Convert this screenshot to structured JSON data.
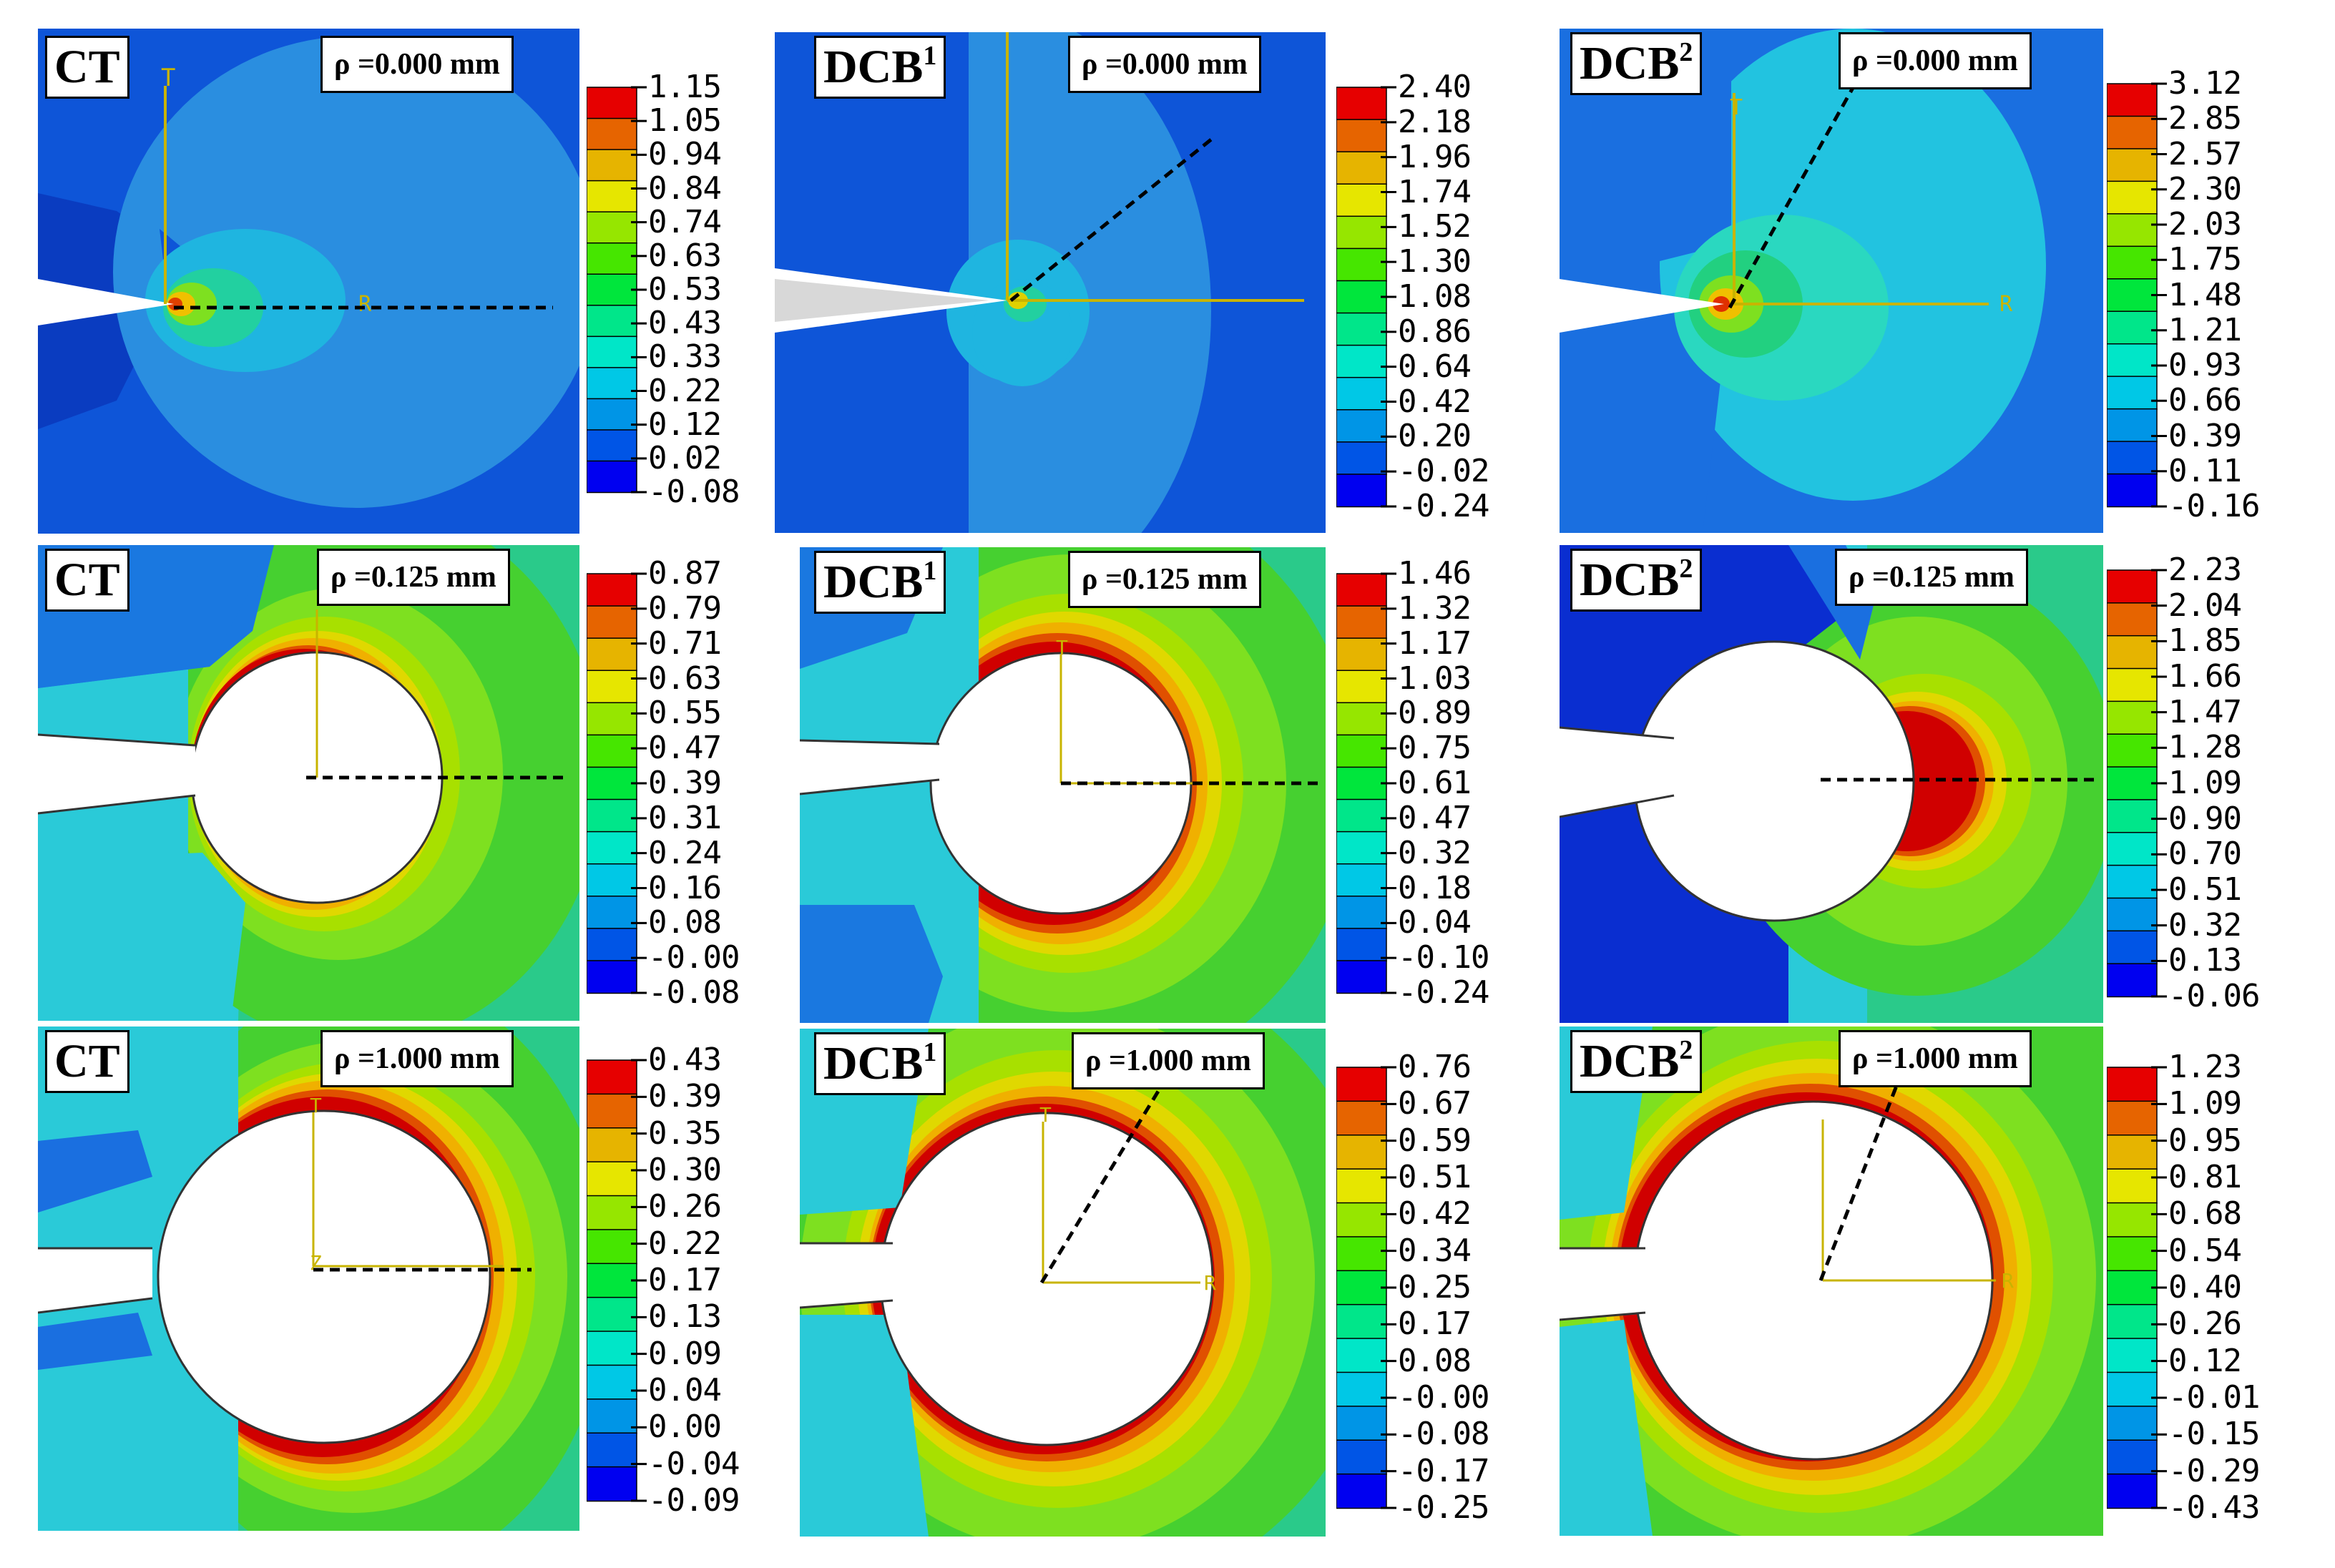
{
  "colormap": [
    "#0000f0",
    "#0055e6",
    "#0095e6",
    "#00c8e6",
    "#00e6c8",
    "#00e68a",
    "#00e63c",
    "#46e600",
    "#96e600",
    "#e6e600",
    "#e6b400",
    "#e66400",
    "#e60000"
  ],
  "panels": [
    {
      "id": "p1",
      "specimen": "CT",
      "sup": "",
      "rho": "ρ =0.000 mm",
      "ticks": [
        "1.15",
        "1.05",
        "0.94",
        "0.84",
        "0.74",
        "0.63",
        "0.53",
        "0.43",
        "0.33",
        "0.22",
        "0.12",
        "0.02",
        "-0.08"
      ]
    },
    {
      "id": "p2",
      "specimen": "DCB",
      "sup": "1",
      "rho": "ρ =0.000 mm",
      "ticks": [
        "2.40",
        "2.18",
        "1.96",
        "1.74",
        "1.52",
        "1.30",
        "1.08",
        "0.86",
        "0.64",
        "0.42",
        "0.20",
        "-0.02",
        "-0.24"
      ]
    },
    {
      "id": "p3",
      "specimen": "DCB",
      "sup": "2",
      "rho": "ρ =0.000 mm",
      "ticks": [
        "3.12",
        "2.85",
        "2.57",
        "2.30",
        "2.03",
        "1.75",
        "1.48",
        "1.21",
        "0.93",
        "0.66",
        "0.39",
        "0.11",
        "-0.16"
      ]
    },
    {
      "id": "p4",
      "specimen": "CT",
      "sup": "",
      "rho": "ρ =0.125 mm",
      "ticks": [
        "0.87",
        "0.79",
        "0.71",
        "0.63",
        "0.55",
        "0.47",
        "0.39",
        "0.31",
        "0.24",
        "0.16",
        "0.08",
        "-0.00",
        "-0.08"
      ]
    },
    {
      "id": "p5",
      "specimen": "DCB",
      "sup": "1",
      "rho": "ρ =0.125 mm",
      "ticks": [
        "1.46",
        "1.32",
        "1.17",
        "1.03",
        "0.89",
        "0.75",
        "0.61",
        "0.47",
        "0.32",
        "0.18",
        "0.04",
        "-0.10",
        "-0.24"
      ]
    },
    {
      "id": "p6",
      "specimen": "DCB",
      "sup": "2",
      "rho": "ρ =0.125 mm",
      "ticks": [
        "2.23",
        "2.04",
        "1.85",
        "1.66",
        "1.47",
        "1.28",
        "1.09",
        "0.90",
        "0.70",
        "0.51",
        "0.32",
        "0.13",
        "-0.06"
      ]
    },
    {
      "id": "p7",
      "specimen": "CT",
      "sup": "",
      "rho": "ρ =1.000 mm",
      "ticks": [
        "0.43",
        "0.39",
        "0.35",
        "0.30",
        "0.26",
        "0.22",
        "0.17",
        "0.13",
        "0.09",
        "0.04",
        "0.00",
        "-0.04",
        "-0.09"
      ]
    },
    {
      "id": "p8",
      "specimen": "DCB",
      "sup": "1",
      "rho": "ρ =1.000 mm",
      "ticks": [
        "0.76",
        "0.67",
        "0.59",
        "0.51",
        "0.42",
        "0.34",
        "0.25",
        "0.17",
        "0.08",
        "-0.00",
        "-0.08",
        "-0.17",
        "-0.25"
      ]
    },
    {
      "id": "p9",
      "specimen": "DCB",
      "sup": "2",
      "rho": "ρ =1.000 mm",
      "ticks": [
        "1.23",
        "1.09",
        "0.95",
        "0.81",
        "0.68",
        "0.54",
        "0.40",
        "0.26",
        "0.12",
        "-0.01",
        "-0.15",
        "-0.29",
        "-0.43"
      ]
    }
  ]
}
